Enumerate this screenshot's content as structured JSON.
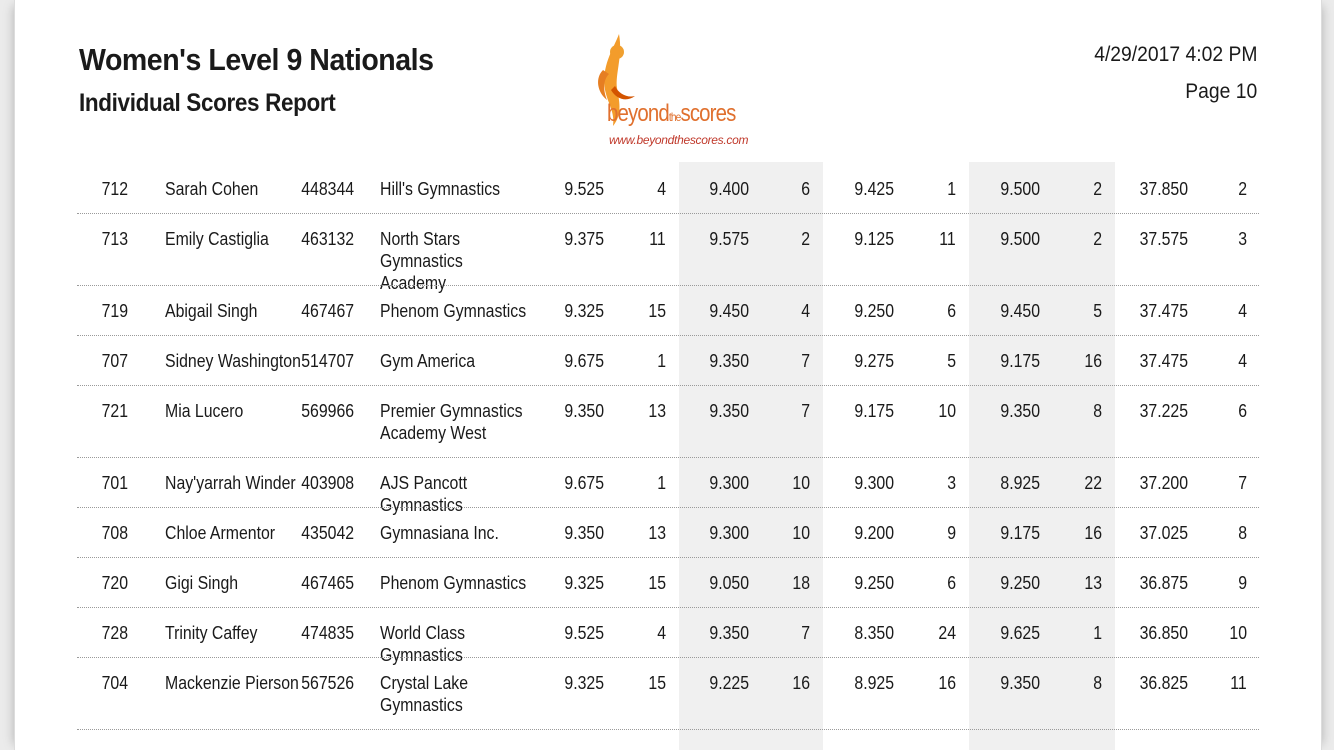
{
  "report": {
    "title": "Women's Level 9 Nationals",
    "subtitle": "Individual Scores Report",
    "datetime": "4/29/2017 4:02 PM",
    "page": "Page 10"
  },
  "logo": {
    "brand_main": "beyond",
    "brand_small": "the",
    "brand_end": "scores",
    "url": "www.beyondthescores.com",
    "color": "#e0702e"
  },
  "rows": [
    {
      "num": "712",
      "name": "Sarah Cohen",
      "id": "448344",
      "club": "Hill's Gymnastics",
      "e1": "9.525",
      "r1": "4",
      "e2": "9.400",
      "r2": "6",
      "e3": "9.425",
      "r3": "1",
      "e4": "9.500",
      "r4": "2",
      "aa": "37.850",
      "place": "2"
    },
    {
      "num": "713",
      "name": "Emily Castiglia",
      "id": "463132",
      "club": "North Stars Gymnastics Academy",
      "e1": "9.375",
      "r1": "11",
      "e2": "9.575",
      "r2": "2",
      "e3": "9.125",
      "r3": "11",
      "e4": "9.500",
      "r4": "2",
      "aa": "37.575",
      "place": "3"
    },
    {
      "num": "719",
      "name": "Abigail Singh",
      "id": "467467",
      "club": "Phenom Gymnastics",
      "e1": "9.325",
      "r1": "15",
      "e2": "9.450",
      "r2": "4",
      "e3": "9.250",
      "r3": "6",
      "e4": "9.450",
      "r4": "5",
      "aa": "37.475",
      "place": "4"
    },
    {
      "num": "707",
      "name": "Sidney Washington",
      "id": "514707",
      "club": "Gym America",
      "e1": "9.675",
      "r1": "1",
      "e2": "9.350",
      "r2": "7",
      "e3": "9.275",
      "r3": "5",
      "e4": "9.175",
      "r4": "16",
      "aa": "37.475",
      "place": "4"
    },
    {
      "num": "721",
      "name": "Mia Lucero",
      "id": "569966",
      "club": "Premier Gymnastics Academy West",
      "e1": "9.350",
      "r1": "13",
      "e2": "9.350",
      "r2": "7",
      "e3": "9.175",
      "r3": "10",
      "e4": "9.350",
      "r4": "8",
      "aa": "37.225",
      "place": "6"
    },
    {
      "num": "701",
      "name": "Nay'yarrah Winder",
      "id": "403908",
      "club": "AJS Pancott Gymnastics",
      "e1": "9.675",
      "r1": "1",
      "e2": "9.300",
      "r2": "10",
      "e3": "9.300",
      "r3": "3",
      "e4": "8.925",
      "r4": "22",
      "aa": "37.200",
      "place": "7"
    },
    {
      "num": "708",
      "name": "Chloe Armentor",
      "id": "435042",
      "club": "Gymnasiana Inc.",
      "e1": "9.350",
      "r1": "13",
      "e2": "9.300",
      "r2": "10",
      "e3": "9.200",
      "r3": "9",
      "e4": "9.175",
      "r4": "16",
      "aa": "37.025",
      "place": "8"
    },
    {
      "num": "720",
      "name": "Gigi Singh",
      "id": "467465",
      "club": "Phenom Gymnastics",
      "e1": "9.325",
      "r1": "15",
      "e2": "9.050",
      "r2": "18",
      "e3": "9.250",
      "r3": "6",
      "e4": "9.250",
      "r4": "13",
      "aa": "36.875",
      "place": "9"
    },
    {
      "num": "728",
      "name": "Trinity Caffey",
      "id": "474835",
      "club": "World Class Gymnastics",
      "e1": "9.525",
      "r1": "4",
      "e2": "9.350",
      "r2": "7",
      "e3": "8.350",
      "r3": "24",
      "e4": "9.625",
      "r4": "1",
      "aa": "36.850",
      "place": "10"
    },
    {
      "num": "704",
      "name": "Mackenzie Pierson",
      "id": "567526",
      "club": "Crystal Lake Gymnastics",
      "e1": "9.325",
      "r1": "15",
      "e2": "9.225",
      "r2": "16",
      "e3": "8.925",
      "r3": "16",
      "e4": "9.350",
      "r4": "8",
      "aa": "36.825",
      "place": "11"
    }
  ]
}
